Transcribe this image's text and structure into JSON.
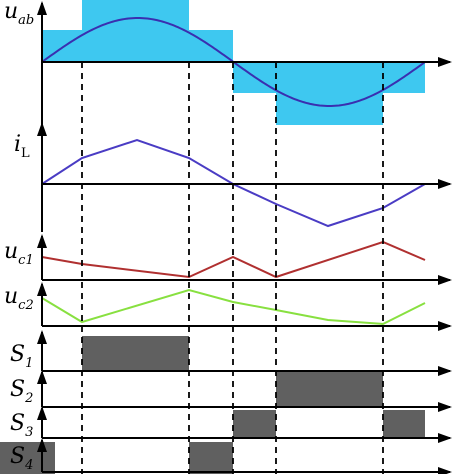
{
  "labels": {
    "uab": {
      "main": "u",
      "sub": "ab"
    },
    "iL": {
      "main": "i",
      "sub": "L"
    },
    "uc1": {
      "main": "u",
      "sub": "c1"
    },
    "uc2": {
      "main": "u",
      "sub": "c2"
    },
    "S1": {
      "main": "S",
      "sub": "1"
    },
    "S2": {
      "main": "S",
      "sub": "2"
    },
    "S3": {
      "main": "S",
      "sub": "3"
    },
    "S4": {
      "main": "S",
      "sub": "4"
    }
  },
  "colors": {
    "square_wave_fill": "#3ec8f0",
    "sine_curve": "#3a2fb0",
    "current_curve": "#4a3cc4",
    "uc1_curve": "#b03030",
    "uc2_curve": "#88e040",
    "pulse_fill": "#606060"
  }
}
